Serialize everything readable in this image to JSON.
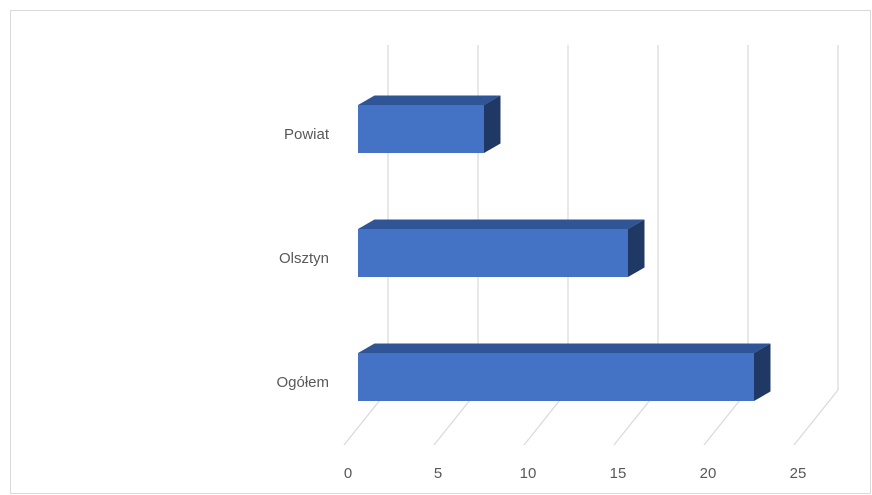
{
  "chart_data": {
    "type": "bar",
    "orientation": "horizontal",
    "style": "3d",
    "categories": [
      "Powiat",
      "Olsztyn",
      "Ogółem"
    ],
    "values": [
      7,
      15,
      22
    ],
    "xlim": [
      0,
      25
    ],
    "x_ticks": [
      "0",
      "5",
      "10",
      "15",
      "20",
      "25"
    ],
    "grid": true,
    "legend": "none",
    "colors": {
      "bar_front": "#4472c4",
      "bar_top": "#2f5597",
      "bar_side": "#203864",
      "gridline": "#d9d9d9",
      "text": "#595959"
    }
  }
}
